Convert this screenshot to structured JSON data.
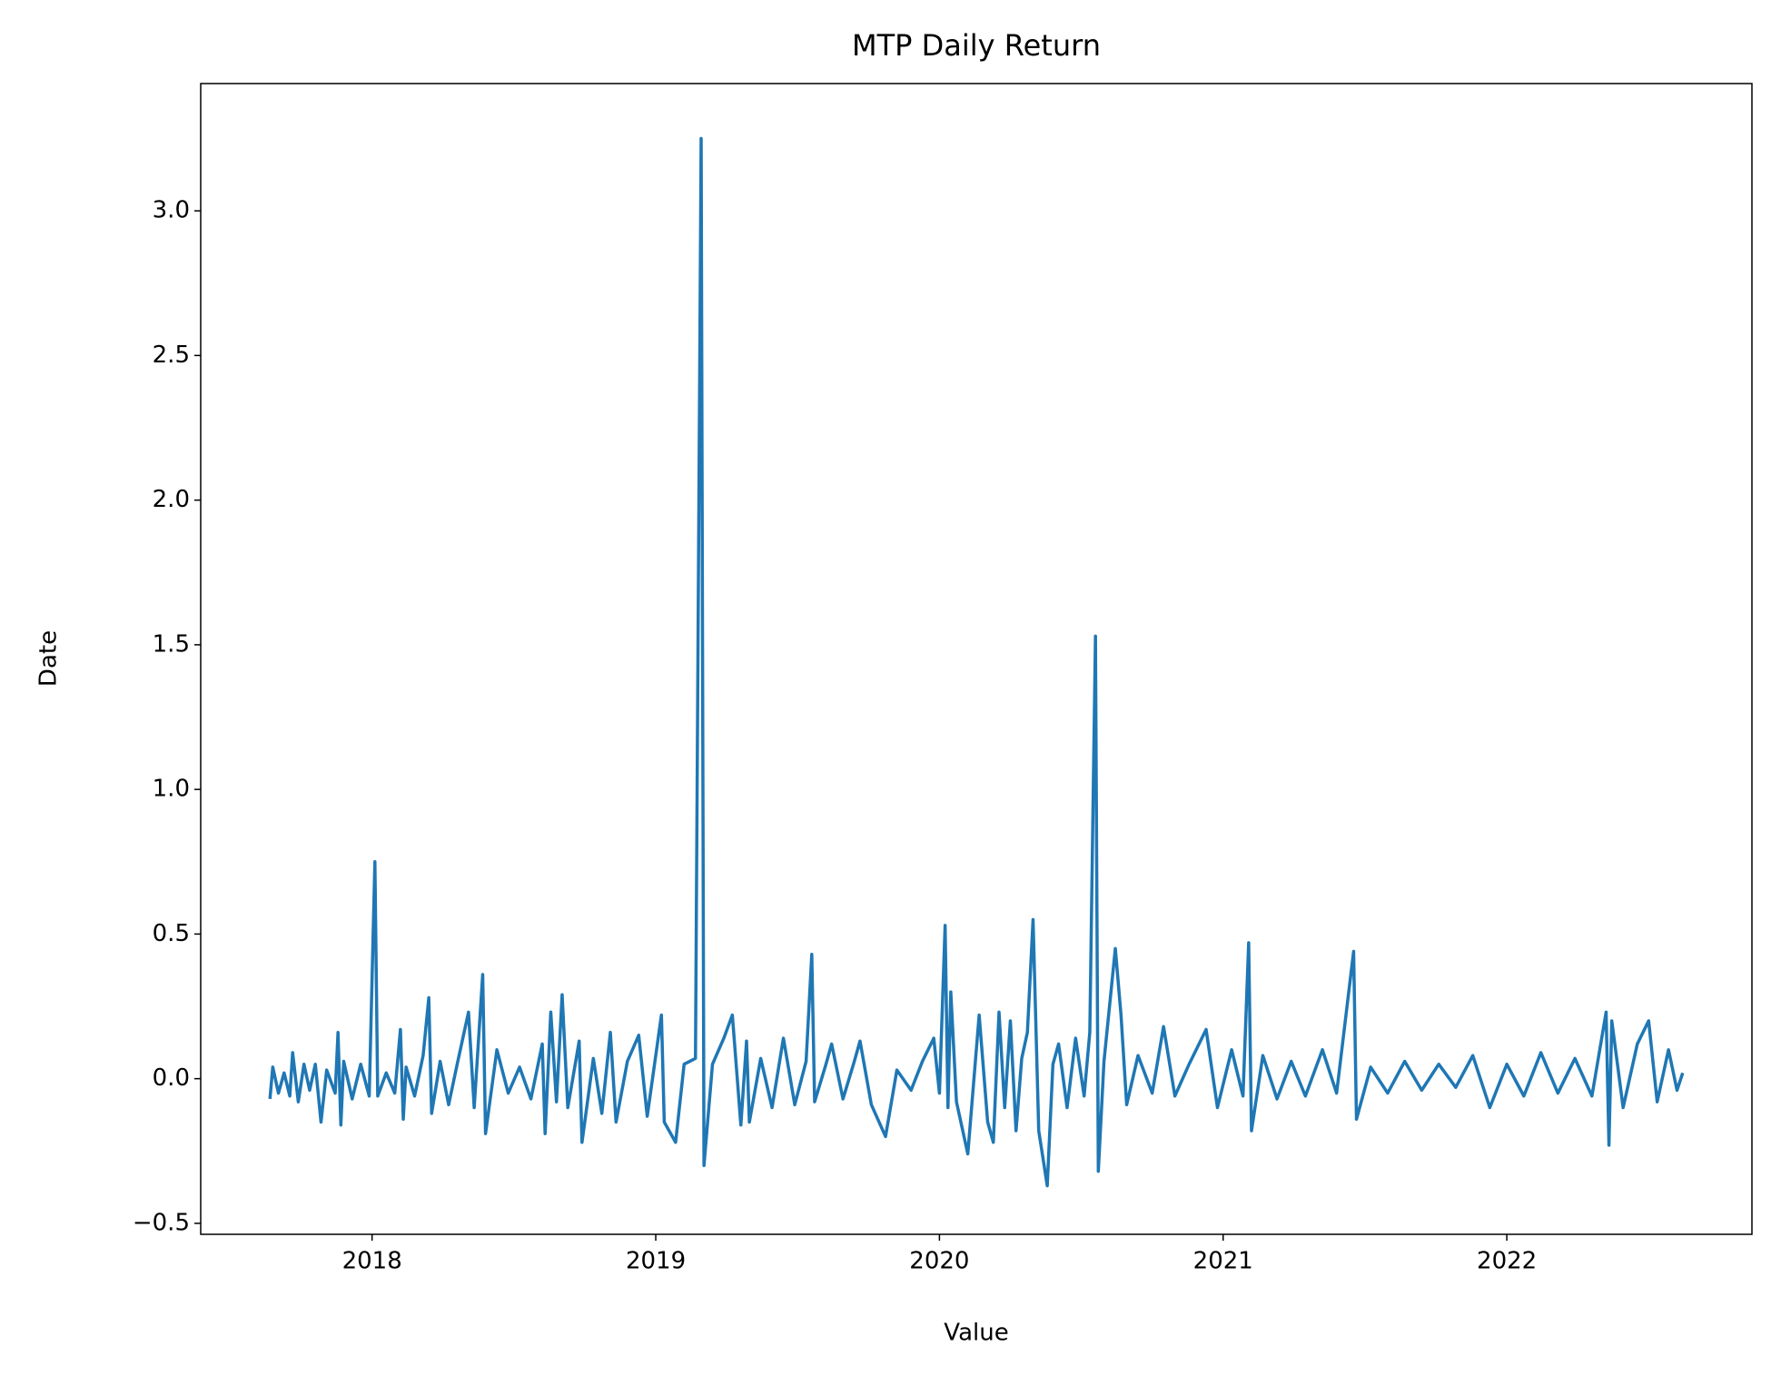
{
  "chart_data": {
    "type": "line",
    "title": "MTP Daily Return",
    "x_label": "Value",
    "y_label": "Date",
    "xlim": [
      2017.396,
      2022.864
    ],
    "ylim": [
      -0.538,
      3.44
    ],
    "xticks": [
      2018,
      2019,
      2020,
      2021,
      2022
    ],
    "yticks": [
      {
        "value": -0.5,
        "label": "−0.5"
      },
      {
        "value": 0,
        "label": "0.0"
      },
      0.5,
      {
        "value": 1,
        "label": "1.0"
      },
      1.5,
      {
        "value": 2,
        "label": "2.0"
      },
      2.5,
      {
        "value": 3,
        "label": "3.0"
      }
    ],
    "series": [
      {
        "color": "#1f77b4",
        "x": [
          2017.64,
          2017.65,
          2017.67,
          2017.69,
          2017.71,
          2017.72,
          2017.74,
          2017.76,
          2017.78,
          2017.8,
          2017.82,
          2017.84,
          2017.87,
          2017.88,
          2017.89,
          2017.9,
          2017.93,
          2017.96,
          2017.99,
          2018.01,
          2018.02,
          2018.05,
          2018.08,
          2018.1,
          2018.11,
          2018.12,
          2018.15,
          2018.18,
          2018.2,
          2018.21,
          2018.24,
          2018.27,
          2018.3,
          2018.34,
          2018.36,
          2018.39,
          2018.4,
          2018.44,
          2018.48,
          2018.52,
          2018.56,
          2018.6,
          2018.61,
          2018.63,
          2018.65,
          2018.67,
          2018.69,
          2018.73,
          2018.74,
          2018.78,
          2018.81,
          2018.84,
          2018.86,
          2018.9,
          2018.94,
          2018.97,
          2019.02,
          2019.03,
          2019.07,
          2019.1,
          2019.14,
          2019.16,
          2019.17,
          2019.2,
          2019.24,
          2019.27,
          2019.3,
          2019.32,
          2019.33,
          2019.37,
          2019.41,
          2019.45,
          2019.49,
          2019.53,
          2019.55,
          2019.56,
          2019.6,
          2019.62,
          2019.66,
          2019.7,
          2019.72,
          2019.76,
          2019.81,
          2019.85,
          2019.9,
          2019.94,
          2019.98,
          2020.0,
          2020.02,
          2020.03,
          2020.04,
          2020.06,
          2020.1,
          2020.14,
          2020.17,
          2020.19,
          2020.21,
          2020.23,
          2020.25,
          2020.27,
          2020.29,
          2020.31,
          2020.33,
          2020.35,
          2020.38,
          2020.4,
          2020.42,
          2020.45,
          2020.48,
          2020.51,
          2020.53,
          2020.55,
          2020.56,
          2020.58,
          2020.62,
          2020.64,
          2020.66,
          2020.7,
          2020.75,
          2020.79,
          2020.83,
          2020.88,
          2020.94,
          2020.98,
          2021.03,
          2021.07,
          2021.09,
          2021.1,
          2021.14,
          2021.19,
          2021.24,
          2021.29,
          2021.35,
          2021.4,
          2021.46,
          2021.47,
          2021.52,
          2021.58,
          2021.64,
          2021.7,
          2021.76,
          2021.82,
          2021.88,
          2021.94,
          2022.0,
          2022.06,
          2022.12,
          2022.18,
          2022.24,
          2022.3,
          2022.35,
          2022.36,
          2022.37,
          2022.41,
          2022.46,
          2022.5,
          2022.53,
          2022.57,
          2022.6,
          2022.62
        ],
        "values": [
          -0.07,
          0.04,
          -0.05,
          0.02,
          -0.06,
          0.09,
          -0.08,
          0.05,
          -0.04,
          0.05,
          -0.15,
          0.03,
          -0.05,
          0.16,
          -0.16,
          0.06,
          -0.07,
          0.05,
          -0.06,
          0.75,
          -0.06,
          0.02,
          -0.05,
          0.17,
          -0.14,
          0.04,
          -0.06,
          0.08,
          0.28,
          -0.12,
          0.06,
          -0.09,
          0.05,
          0.23,
          -0.1,
          0.36,
          -0.19,
          0.1,
          -0.05,
          0.04,
          -0.07,
          0.12,
          -0.19,
          0.23,
          -0.08,
          0.29,
          -0.1,
          0.13,
          -0.22,
          0.07,
          -0.12,
          0.16,
          -0.15,
          0.06,
          0.15,
          -0.13,
          0.22,
          -0.15,
          -0.22,
          0.05,
          0.07,
          3.25,
          -0.3,
          0.05,
          0.14,
          0.22,
          -0.16,
          0.13,
          -0.15,
          0.07,
          -0.1,
          0.14,
          -0.09,
          0.06,
          0.43,
          -0.08,
          0.05,
          0.12,
          -0.07,
          0.06,
          0.13,
          -0.09,
          -0.2,
          0.03,
          -0.04,
          0.06,
          0.14,
          -0.05,
          0.53,
          -0.1,
          0.3,
          -0.08,
          -0.26,
          0.22,
          -0.15,
          -0.22,
          0.23,
          -0.1,
          0.2,
          -0.18,
          0.07,
          0.16,
          0.55,
          -0.18,
          -0.37,
          0.05,
          0.12,
          -0.1,
          0.14,
          -0.06,
          0.16,
          1.53,
          -0.32,
          0.06,
          0.45,
          0.22,
          -0.09,
          0.08,
          -0.05,
          0.18,
          -0.06,
          0.05,
          0.17,
          -0.1,
          0.1,
          -0.06,
          0.47,
          -0.18,
          0.08,
          -0.07,
          0.06,
          -0.06,
          0.1,
          -0.05,
          0.44,
          -0.14,
          0.04,
          -0.05,
          0.06,
          -0.04,
          0.05,
          -0.03,
          0.08,
          -0.1,
          0.05,
          -0.06,
          0.09,
          -0.05,
          0.07,
          -0.06,
          0.23,
          -0.23,
          0.2,
          -0.1,
          0.12,
          0.2,
          -0.08,
          0.1,
          -0.04,
          0.02
        ]
      }
    ]
  }
}
